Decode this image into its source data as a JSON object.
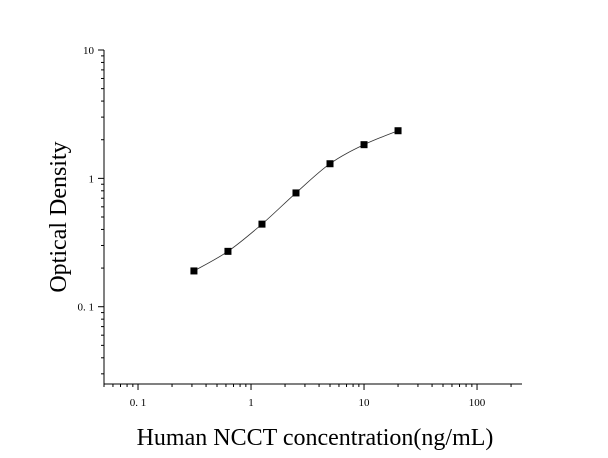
{
  "chart_data": {
    "type": "scatter",
    "xlabel": "Human NCCT concentration(ng/mL)",
    "ylabel": "Optical Density",
    "x_scale": "log",
    "y_scale": "log",
    "xlim": [
      0.05,
      250
    ],
    "ylim": [
      0.025,
      10
    ],
    "x_ticks": [
      {
        "value": 0.1,
        "label": "0. 1"
      },
      {
        "value": 1,
        "label": "1"
      },
      {
        "value": 10,
        "label": "10"
      },
      {
        "value": 100,
        "label": "100"
      }
    ],
    "y_ticks": [
      {
        "value": 0.1,
        "label": "0. 1"
      },
      {
        "value": 1,
        "label": "1"
      },
      {
        "value": 10,
        "label": "10"
      }
    ],
    "series": [
      {
        "x": [
          0.3125,
          0.625,
          1.25,
          2.5,
          5,
          10,
          20
        ],
        "y": [
          0.19,
          0.27,
          0.44,
          0.77,
          1.3,
          1.83,
          2.35
        ],
        "marker": "square",
        "fit": "4PL",
        "color": "#000000"
      }
    ],
    "grid": false,
    "legend": "none"
  }
}
